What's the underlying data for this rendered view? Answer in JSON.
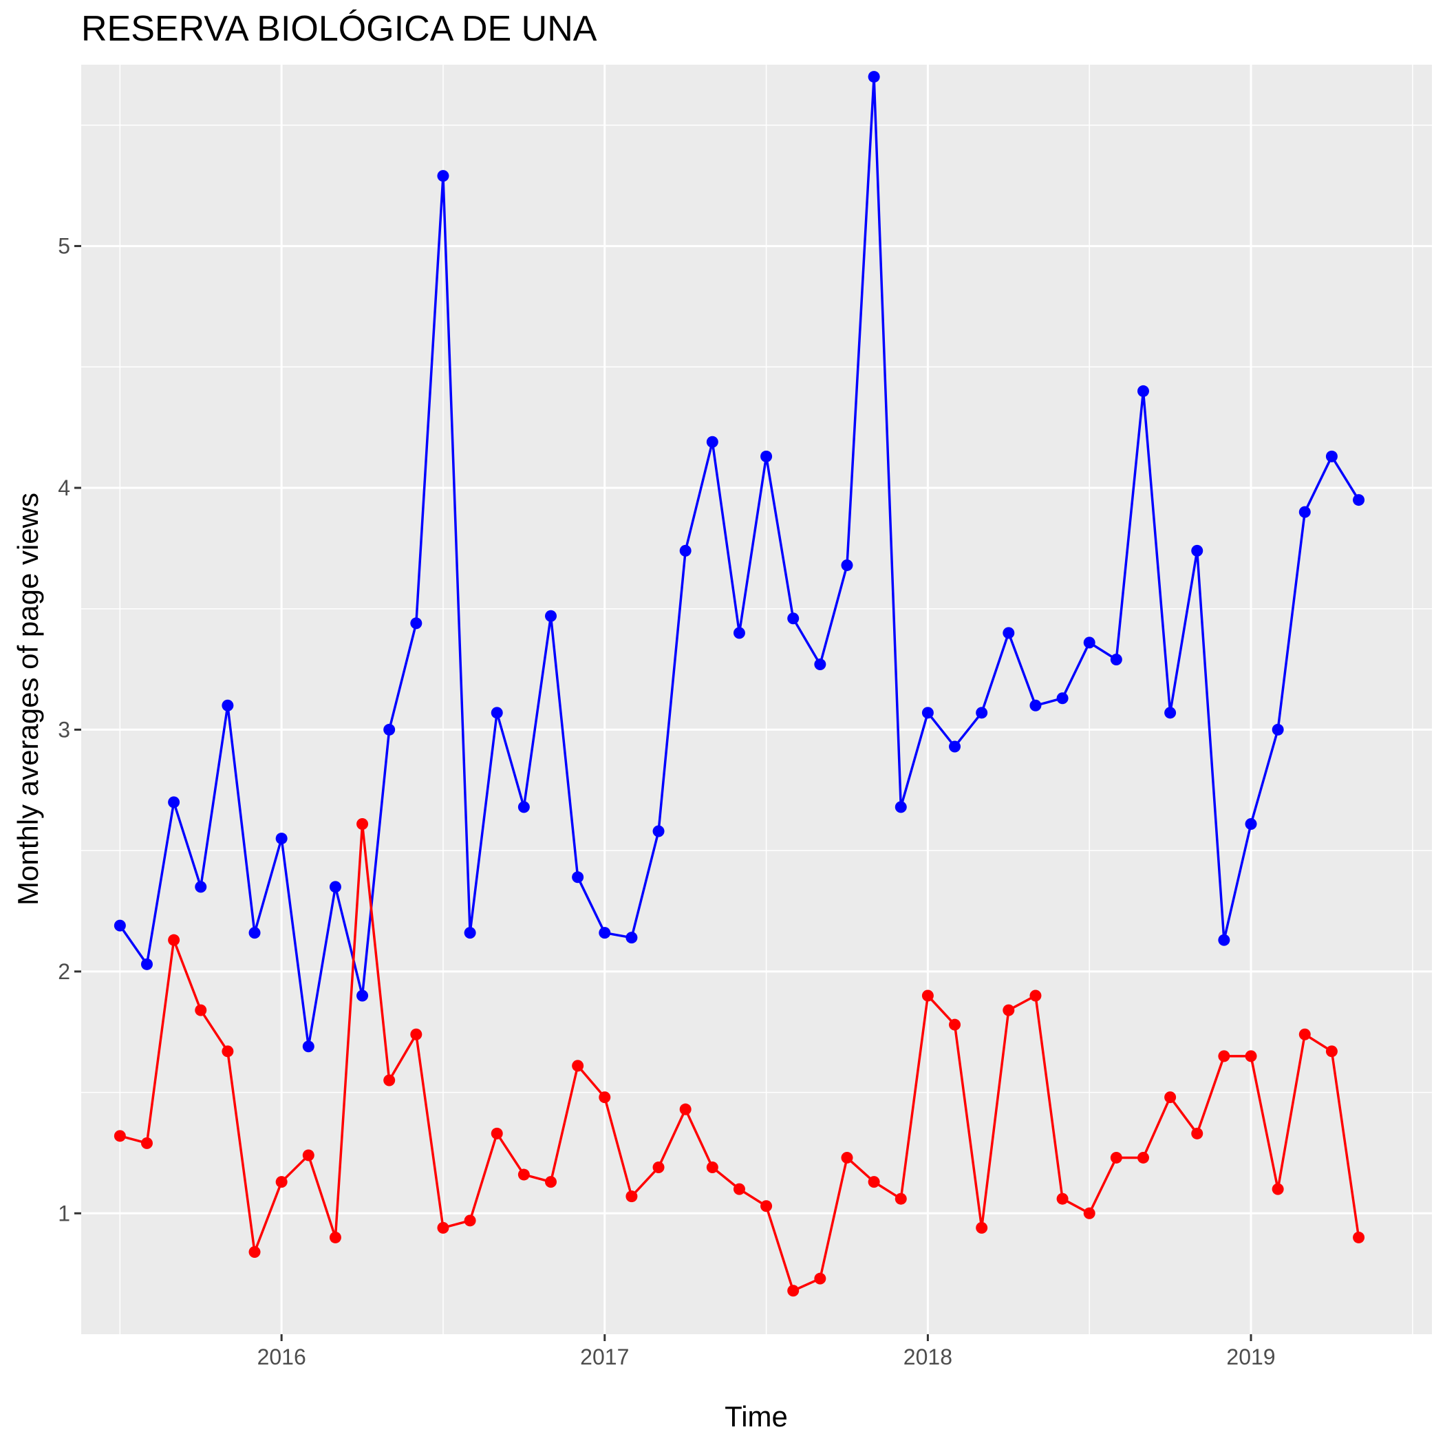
{
  "chart_data": {
    "type": "line",
    "title": "RESERVA BIOLÓGICA DE UNA",
    "xlabel": "Time",
    "ylabel": "Monthly averages of page views",
    "x_ticks": [
      {
        "label": "2016",
        "value": 2016.0
      },
      {
        "label": "2017",
        "value": 2017.0
      },
      {
        "label": "2018",
        "value": 2018.0
      },
      {
        "label": "2019",
        "value": 2019.0
      }
    ],
    "y_ticks": [
      1,
      2,
      3,
      4,
      5
    ],
    "xlim": [
      2015.38,
      2019.56
    ],
    "ylim": [
      0.5,
      5.75
    ],
    "grid": true,
    "background": "#ebebeb",
    "gridline_color": "#ffffff",
    "x": [
      "2015-07",
      "2015-08",
      "2015-09",
      "2015-10",
      "2015-11",
      "2015-12",
      "2016-01",
      "2016-02",
      "2016-03",
      "2016-04",
      "2016-05",
      "2016-06",
      "2016-07",
      "2016-08",
      "2016-09",
      "2016-10",
      "2016-11",
      "2016-12",
      "2017-01",
      "2017-02",
      "2017-03",
      "2017-04",
      "2017-05",
      "2017-06",
      "2017-07",
      "2017-08",
      "2017-09",
      "2017-10",
      "2017-11",
      "2017-12",
      "2018-01",
      "2018-02",
      "2018-03",
      "2018-04",
      "2018-05",
      "2018-06",
      "2018-07",
      "2018-08",
      "2018-09",
      "2018-10",
      "2018-11",
      "2018-12",
      "2019-01",
      "2019-02",
      "2019-03",
      "2019-04",
      "2019-05"
    ],
    "series": [
      {
        "color": "#0000ff",
        "values": [
          2.19,
          2.03,
          2.7,
          2.35,
          3.1,
          2.16,
          2.55,
          1.69,
          2.35,
          1.9,
          3.0,
          3.44,
          5.29,
          2.16,
          3.07,
          2.68,
          3.47,
          2.39,
          2.16,
          2.14,
          2.58,
          3.74,
          4.19,
          3.4,
          4.13,
          3.46,
          3.27,
          3.68,
          5.7,
          2.68,
          3.07,
          2.93,
          3.07,
          3.4,
          3.1,
          3.13,
          3.36,
          3.29,
          4.4,
          3.07,
          3.74,
          2.13,
          2.61,
          3.0,
          3.9,
          4.13,
          3.95
        ]
      },
      {
        "color": "#ff0000",
        "values": [
          1.32,
          1.29,
          2.13,
          1.84,
          1.67,
          0.84,
          1.13,
          1.24,
          0.9,
          2.61,
          1.55,
          1.74,
          0.94,
          0.97,
          1.33,
          1.16,
          1.13,
          1.61,
          1.48,
          1.07,
          1.19,
          1.43,
          1.19,
          1.1,
          1.03,
          0.68,
          0.73,
          1.23,
          1.13,
          1.06,
          1.9,
          1.78,
          0.94,
          1.84,
          1.9,
          1.06,
          1.0,
          1.23,
          1.23,
          1.48,
          1.33,
          1.65,
          1.65,
          1.1,
          1.74,
          1.67,
          0.9
        ]
      }
    ]
  }
}
